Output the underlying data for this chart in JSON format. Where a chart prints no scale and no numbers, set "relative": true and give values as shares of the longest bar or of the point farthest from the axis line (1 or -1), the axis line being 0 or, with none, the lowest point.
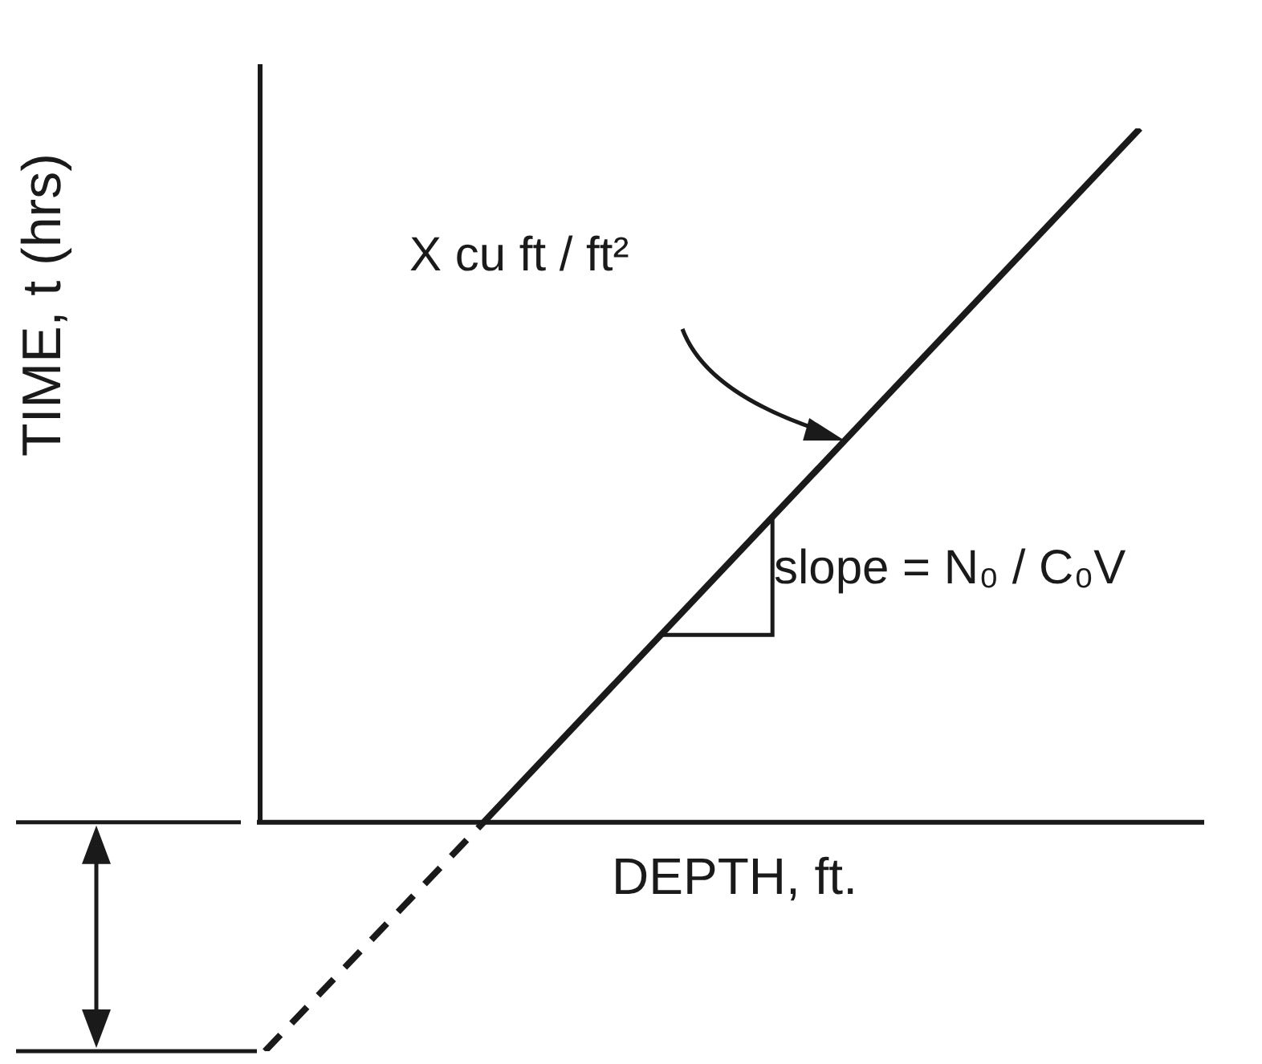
{
  "chart_data": {
    "type": "line",
    "relative": true,
    "xlabel": "DEPTH, ft.",
    "ylabel": "TIME, t (hrs)",
    "categories": [
      null,
      null,
      null,
      null,
      null
    ],
    "series": [
      {
        "color": "#1a1a1a",
        "line_style": "solid",
        "values": [
          null,
          0,
          null,
          null,
          1
        ]
      },
      {
        "color": "#1a1a1a",
        "line_style": "dashed",
        "values": [
          -0.33,
          0,
          null,
          null,
          null
        ]
      }
    ],
    "annotations": [
      "X cu ft / ft²",
      "slope = N₀ / C₀V"
    ],
    "marker": "none",
    "legend": false
  }
}
